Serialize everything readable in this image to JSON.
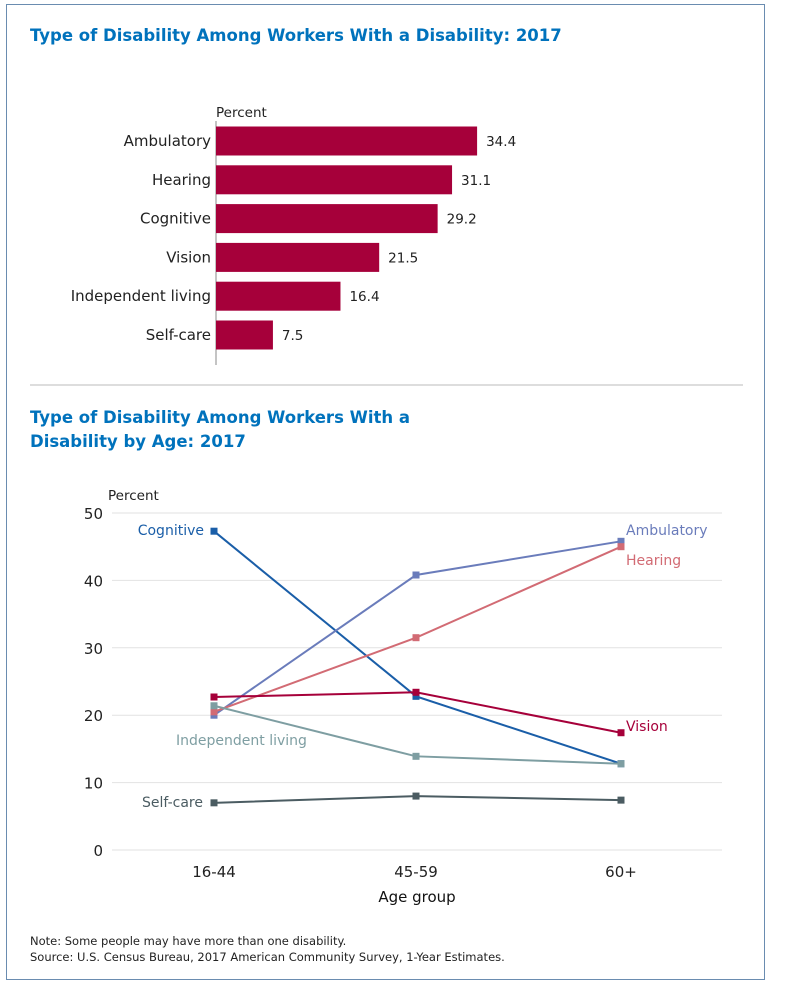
{
  "chart_data": [
    {
      "type": "bar",
      "title": "Type of Disability Among Workers With a Disability: 2017",
      "ylabel": "Percent",
      "categories": [
        "Ambulatory",
        "Hearing",
        "Cognitive",
        "Vision",
        "Independent living",
        "Self-care"
      ],
      "values": [
        34.4,
        31.1,
        29.2,
        21.5,
        16.4,
        7.5
      ],
      "value_labels": [
        "34.4",
        "31.1",
        "29.2",
        "21.5",
        "16.4",
        "7.5"
      ],
      "color": "#a6003a",
      "orientation": "horizontal"
    },
    {
      "type": "line",
      "title": "Type of Disability Among Workers With a Disability by Age: 2017",
      "ylabel": "Percent",
      "xlabel": "Age group",
      "categories": [
        "16-44",
        "45-59",
        "60+"
      ],
      "ylim": [
        0,
        50
      ],
      "yticks": [
        "0",
        "10",
        "20",
        "30",
        "40",
        "50"
      ],
      "grid": true,
      "series": [
        {
          "name": "Cognitive",
          "values": [
            47.3,
            22.8,
            12.8
          ],
          "color": "#1a5ea8"
        },
        {
          "name": "Ambulatory",
          "values": [
            20.0,
            40.8,
            45.8
          ],
          "color": "#6a7cbb"
        },
        {
          "name": "Hearing",
          "values": [
            20.5,
            31.5,
            45.0
          ],
          "color": "#d26b74"
        },
        {
          "name": "Vision",
          "values": [
            22.7,
            23.4,
            17.4
          ],
          "color": "#a6003a"
        },
        {
          "name": "Independent living",
          "values": [
            21.4,
            13.9,
            12.8
          ],
          "color": "#7e9ea2"
        },
        {
          "name": "Self-care",
          "values": [
            7.0,
            8.0,
            7.4
          ],
          "color": "#4b5c62"
        }
      ]
    }
  ],
  "notes": {
    "note": "Note: Some people may have more than one disability.",
    "source": "Source: U.S. Census Bureau, 2017 American Community Survey, 1-Year Estimates."
  }
}
